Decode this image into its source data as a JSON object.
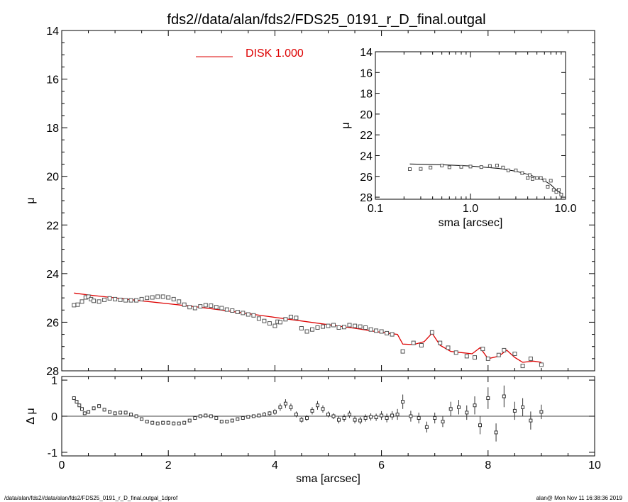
{
  "title": "fds2//data/alan/fds2/FDS25_0191_r_D_final.outgal",
  "footer": {
    "left": "/data/alan/fds2//data/alan/fds2/FDS25_0191_r_D_final.outgal_1dprof",
    "right": "alan@  Mon Nov 11 16:38:36 2019"
  },
  "colors": {
    "model": "#dd0000",
    "data": "#555555",
    "axes": "#000000"
  },
  "chart_data": [
    {
      "type": "scatter",
      "panel": "main",
      "ylabel": "μ",
      "xlim": [
        0,
        10
      ],
      "ylim": [
        28,
        14
      ],
      "y_inverted": true,
      "yticks": [
        14,
        16,
        18,
        20,
        22,
        24,
        26,
        28
      ],
      "legend": {
        "placement": "top-center",
        "label": "DISK  1.000",
        "color": "#dd0000"
      },
      "series": [
        {
          "name": "DISK  1.000",
          "style": "line",
          "x": [
            0.23,
            0.5,
            1.0,
            1.5,
            2.0,
            2.5,
            3.0,
            3.5,
            4.0,
            4.5,
            5.0,
            5.5,
            6.0,
            6.3,
            6.4,
            6.6,
            6.8,
            6.95,
            7.1,
            7.3,
            7.5,
            7.7,
            7.85,
            8.0,
            8.2,
            8.35,
            8.5,
            8.65,
            8.85,
            9.0
          ],
          "y": [
            24.8,
            24.88,
            25.0,
            25.12,
            25.24,
            25.36,
            25.5,
            25.65,
            25.8,
            25.95,
            26.1,
            26.25,
            26.42,
            26.5,
            26.9,
            26.92,
            26.8,
            26.45,
            26.95,
            27.2,
            27.25,
            27.3,
            27.05,
            27.5,
            27.4,
            27.15,
            27.45,
            27.65,
            27.6,
            27.65
          ]
        },
        {
          "name": "",
          "style": "points",
          "x": [
            0.23,
            0.3,
            0.38,
            0.45,
            0.5,
            0.55,
            0.6,
            0.7,
            0.8,
            0.9,
            1.0,
            1.1,
            1.2,
            1.3,
            1.4,
            1.5,
            1.6,
            1.7,
            1.8,
            1.9,
            2.0,
            2.1,
            2.2,
            2.3,
            2.4,
            2.5,
            2.6,
            2.7,
            2.8,
            2.9,
            3.0,
            3.1,
            3.2,
            3.3,
            3.4,
            3.5,
            3.6,
            3.7,
            3.8,
            3.9,
            4.0,
            4.05,
            4.1,
            4.2,
            4.3,
            4.4,
            4.5,
            4.6,
            4.7,
            4.8,
            4.9,
            5.0,
            5.1,
            5.2,
            5.3,
            5.4,
            5.5,
            5.6,
            5.7,
            5.8,
            5.9,
            6.0,
            6.1,
            6.2,
            6.4,
            6.6,
            6.75,
            6.95,
            7.1,
            7.25,
            7.4,
            7.6,
            7.75,
            7.9,
            8.0,
            8.2,
            8.3,
            8.5,
            8.65,
            8.8,
            9.0
          ],
          "y": [
            25.3,
            25.28,
            25.15,
            24.98,
            24.95,
            25.05,
            25.12,
            25.15,
            25.08,
            25.02,
            25.05,
            25.08,
            25.1,
            25.1,
            25.1,
            25.05,
            25.0,
            24.98,
            24.95,
            24.95,
            24.98,
            25.05,
            25.15,
            25.28,
            25.38,
            25.42,
            25.35,
            25.3,
            25.32,
            25.38,
            25.42,
            25.48,
            25.52,
            25.58,
            25.62,
            25.68,
            25.72,
            25.85,
            25.95,
            26.05,
            26.15,
            25.98,
            26.0,
            25.88,
            25.78,
            25.82,
            26.25,
            26.38,
            26.3,
            26.22,
            26.18,
            26.15,
            26.12,
            26.22,
            26.2,
            26.12,
            26.15,
            26.18,
            26.22,
            26.3,
            26.35,
            26.38,
            26.45,
            26.5,
            27.2,
            26.85,
            26.95,
            26.42,
            26.85,
            27.05,
            27.25,
            27.4,
            27.45,
            27.1,
            27.5,
            27.35,
            27.15,
            27.3,
            27.8,
            27.5,
            27.75
          ]
        }
      ]
    },
    {
      "type": "scatter",
      "panel": "residual",
      "xlabel": "sma [arcsec]",
      "ylabel": "Δ μ",
      "xlim": [
        0,
        10
      ],
      "ylim": [
        -1.1,
        1.1
      ],
      "xticks": [
        0,
        2,
        4,
        6,
        8,
        10
      ],
      "yticks": [
        -1,
        0,
        1
      ],
      "reference_line": 0,
      "series": [
        {
          "name": "",
          "style": "points-errorbars",
          "x": [
            0.23,
            0.28,
            0.33,
            0.38,
            0.43,
            0.5,
            0.6,
            0.7,
            0.8,
            0.9,
            1.0,
            1.1,
            1.2,
            1.3,
            1.4,
            1.5,
            1.6,
            1.7,
            1.8,
            1.9,
            2.0,
            2.1,
            2.2,
            2.3,
            2.4,
            2.5,
            2.6,
            2.7,
            2.8,
            2.9,
            3.0,
            3.1,
            3.2,
            3.3,
            3.4,
            3.5,
            3.6,
            3.7,
            3.8,
            3.9,
            4.0,
            4.1,
            4.2,
            4.3,
            4.4,
            4.5,
            4.6,
            4.7,
            4.8,
            4.9,
            5.0,
            5.1,
            5.2,
            5.3,
            5.4,
            5.5,
            5.6,
            5.7,
            5.8,
            5.9,
            6.0,
            6.1,
            6.2,
            6.3,
            6.4,
            6.55,
            6.7,
            6.85,
            7.0,
            7.15,
            7.3,
            7.45,
            7.6,
            7.75,
            7.85,
            8.0,
            8.15,
            8.3,
            8.5,
            8.65,
            8.8,
            9.0
          ],
          "y": [
            0.5,
            0.4,
            0.3,
            0.2,
            0.08,
            0.12,
            0.22,
            0.28,
            0.18,
            0.12,
            0.08,
            0.1,
            0.1,
            0.05,
            0.0,
            -0.08,
            -0.15,
            -0.18,
            -0.2,
            -0.18,
            -0.18,
            -0.2,
            -0.2,
            -0.18,
            -0.12,
            -0.05,
            0.0,
            0.02,
            0.0,
            -0.05,
            -0.15,
            -0.15,
            -0.12,
            -0.08,
            -0.05,
            -0.02,
            0.0,
            0.02,
            0.05,
            0.08,
            0.12,
            0.25,
            0.35,
            0.25,
            0.05,
            -0.1,
            -0.05,
            0.15,
            0.3,
            0.2,
            0.05,
            0.0,
            -0.1,
            -0.05,
            0.05,
            -0.1,
            -0.12,
            -0.05,
            -0.02,
            -0.03,
            0.02,
            -0.05,
            0.02,
            0.05,
            0.4,
            0.0,
            -0.05,
            -0.3,
            -0.05,
            -0.15,
            0.2,
            0.25,
            0.1,
            0.3,
            -0.25,
            0.5,
            -0.45,
            0.55,
            0.15,
            0.25,
            -0.12,
            0.12
          ],
          "err": [
            0.05,
            0.05,
            0.05,
            0.05,
            0.05,
            0.05,
            0.05,
            0.05,
            0.05,
            0.05,
            0.05,
            0.05,
            0.05,
            0.05,
            0.05,
            0.05,
            0.05,
            0.05,
            0.05,
            0.05,
            0.05,
            0.05,
            0.05,
            0.05,
            0.05,
            0.05,
            0.05,
            0.05,
            0.05,
            0.05,
            0.05,
            0.05,
            0.05,
            0.05,
            0.05,
            0.05,
            0.05,
            0.05,
            0.06,
            0.06,
            0.08,
            0.1,
            0.12,
            0.1,
            0.08,
            0.08,
            0.08,
            0.1,
            0.12,
            0.1,
            0.08,
            0.08,
            0.1,
            0.1,
            0.1,
            0.1,
            0.1,
            0.1,
            0.1,
            0.1,
            0.12,
            0.12,
            0.12,
            0.15,
            0.2,
            0.15,
            0.15,
            0.15,
            0.15,
            0.15,
            0.2,
            0.2,
            0.2,
            0.25,
            0.25,
            0.3,
            0.25,
            0.3,
            0.25,
            0.25,
            0.25,
            0.2
          ]
        }
      ]
    },
    {
      "type": "line",
      "panel": "inset",
      "xlabel": "sma [arcsec]",
      "ylabel": "μ",
      "x_scale": "log",
      "xlim": [
        0.1,
        10
      ],
      "ylim": [
        28.2,
        14
      ],
      "y_inverted": true,
      "xticks": [
        0.1,
        1.0,
        10.0
      ],
      "xtick_labels": [
        "0.1",
        "1.0",
        "10.0"
      ],
      "yticks": [
        14,
        16,
        18,
        20,
        22,
        24,
        26,
        28
      ],
      "series": [
        {
          "name": "",
          "style": "line",
          "x": [
            0.23,
            0.5,
            1.0,
            2.0,
            3.0,
            4.0,
            5.0,
            6.0,
            7.0,
            8.0,
            9.0
          ],
          "y": [
            24.8,
            24.88,
            25.0,
            25.24,
            25.5,
            25.8,
            26.1,
            26.42,
            26.8,
            27.3,
            27.65
          ]
        },
        {
          "name": "",
          "style": "points",
          "x": [
            0.23,
            0.3,
            0.38,
            0.5,
            0.6,
            0.8,
            1.0,
            1.3,
            1.6,
            1.9,
            2.2,
            2.5,
            3.0,
            3.5,
            4.0,
            4.2,
            4.5,
            5.0,
            5.5,
            6.0,
            6.5,
            7.0,
            7.5,
            8.0,
            8.5,
            9.0
          ],
          "y": [
            25.3,
            25.28,
            25.15,
            24.95,
            25.12,
            25.08,
            25.05,
            25.1,
            25.0,
            24.95,
            25.15,
            25.42,
            25.42,
            25.68,
            26.15,
            25.88,
            26.25,
            26.15,
            26.15,
            26.38,
            27.0,
            26.42,
            27.3,
            27.5,
            27.3,
            27.75
          ]
        }
      ]
    }
  ]
}
